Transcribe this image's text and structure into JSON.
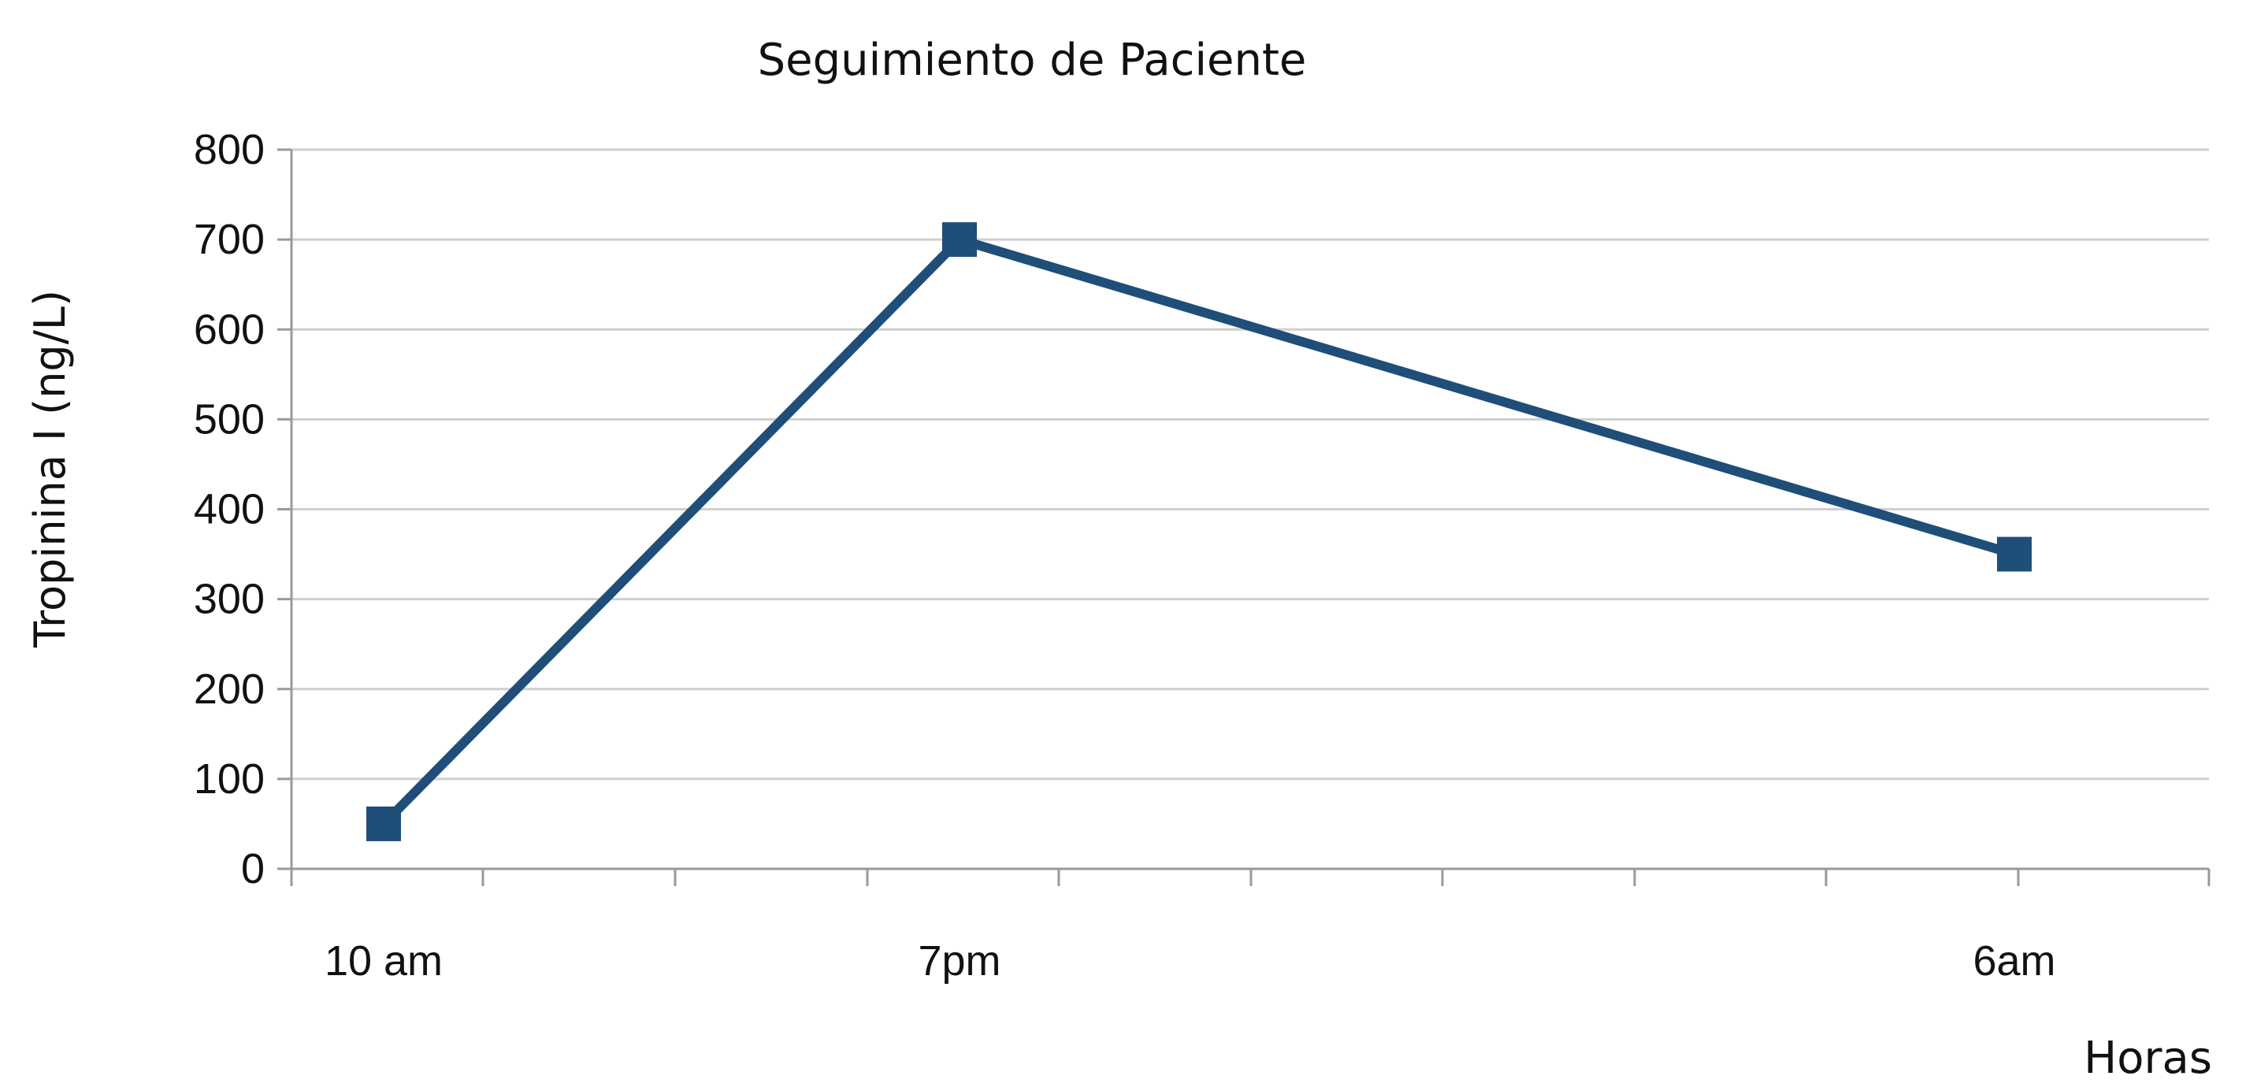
{
  "chart_data": {
    "type": "line",
    "title": "Seguimiento de Paciente",
    "xlabel": "Horas",
    "ylabel": "Tropinina I (ng/L)",
    "x_ticks": [
      "10 am",
      "7pm",
      "6am"
    ],
    "y_ticks": [
      0,
      100,
      200,
      300,
      400,
      500,
      600,
      700,
      800
    ],
    "ylim": [
      0,
      800
    ],
    "grid": true,
    "series": [
      {
        "x": [
          "10 am",
          "7pm",
          "6am"
        ],
        "values": [
          50,
          700,
          350
        ]
      }
    ],
    "colors": {
      "line": "#1f4e79",
      "grid": "#cfcfcf",
      "axis": "#9a9a9a",
      "text": "#111111"
    }
  }
}
